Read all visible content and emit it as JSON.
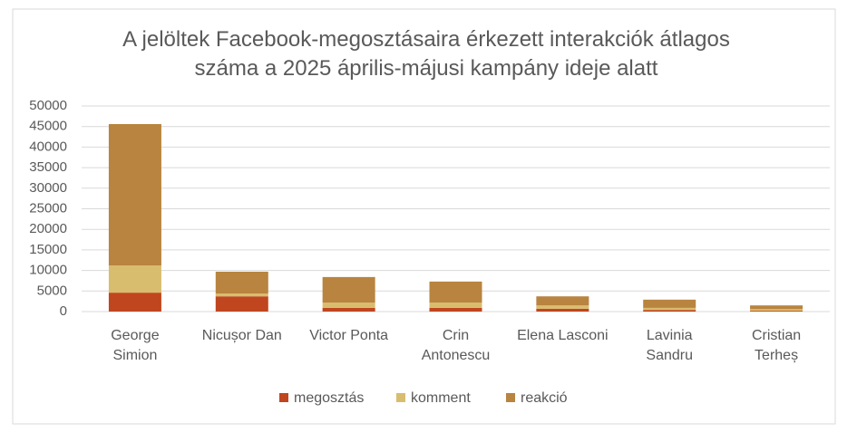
{
  "chart_data": {
    "type": "stacked_bar",
    "title": "A jelöltek Facebook-megosztásaira érkezett interakciók átlagos száma a 2025 április-májusi kampány ideje alatt",
    "categories": [
      "George Simion",
      "Nicușor Dan",
      "Victor Ponta",
      "Crin Antonescu",
      "Elena Lasconi",
      "Lavinia Sandru",
      "Cristian Terheș"
    ],
    "series": [
      {
        "name": "megosztás",
        "color": "#c0461f",
        "values": [
          4600,
          3700,
          900,
          900,
          700,
          400,
          200
        ]
      },
      {
        "name": "komment",
        "color": "#d8bd6e",
        "values": [
          6600,
          700,
          1300,
          1300,
          800,
          500,
          400
        ]
      },
      {
        "name": "reakció",
        "color": "#b8843f",
        "values": [
          34400,
          5300,
          6200,
          5100,
          2200,
          2000,
          900
        ]
      }
    ],
    "ylim": [
      0,
      50000
    ],
    "yticks": [
      0,
      5000,
      10000,
      15000,
      20000,
      25000,
      30000,
      35000,
      40000,
      45000,
      50000
    ],
    "grid": true,
    "legend": "bottom"
  }
}
